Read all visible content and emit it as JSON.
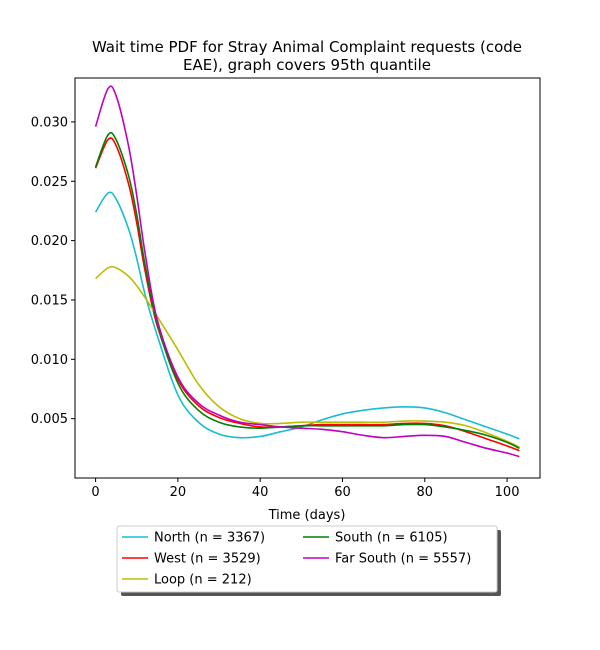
{
  "chart_data": {
    "type": "line",
    "title_line1": "Wait time PDF for Stray Animal Complaint  requests (code",
    "title_line2": "EAE), graph covers 95th quantile",
    "xlabel": "Time (days)",
    "ylabel": "",
    "xlim": [
      -5,
      108
    ],
    "ylim": [
      0.0,
      0.0337
    ],
    "xticks": [
      0,
      20,
      40,
      60,
      80,
      100
    ],
    "yticks": [
      0.005,
      0.01,
      0.015,
      0.02,
      0.025,
      0.03
    ],
    "xtick_labels": [
      "0",
      "20",
      "40",
      "60",
      "80",
      "100"
    ],
    "ytick_labels": [
      "0.005",
      "0.010",
      "0.015",
      "0.020",
      "0.025",
      "0.030"
    ],
    "grid": false,
    "legend_position": "bottom-center, below axes, two columns",
    "series": [
      {
        "name": "North (n = 3367)",
        "color": "#17becf",
        "x": [
          0,
          3,
          5,
          8,
          10,
          12,
          15,
          20,
          25,
          30,
          35,
          40,
          45,
          50,
          55,
          60,
          65,
          70,
          75,
          80,
          85,
          90,
          95,
          100,
          103
        ],
        "y": [
          0.0224,
          0.024,
          0.0235,
          0.021,
          0.0185,
          0.0155,
          0.012,
          0.007,
          0.0047,
          0.0037,
          0.0034,
          0.0035,
          0.0039,
          0.0043,
          0.0049,
          0.0054,
          0.0057,
          0.0059,
          0.006,
          0.0059,
          0.0055,
          0.0049,
          0.0043,
          0.0037,
          0.0033
        ]
      },
      {
        "name": "West (n = 3529)",
        "color": "#ff0000",
        "x": [
          0,
          3,
          5,
          8,
          10,
          12,
          15,
          20,
          25,
          30,
          35,
          40,
          45,
          50,
          55,
          60,
          65,
          70,
          75,
          80,
          85,
          90,
          95,
          100,
          103
        ],
        "y": [
          0.0261,
          0.0285,
          0.028,
          0.0248,
          0.0215,
          0.0175,
          0.0128,
          0.0083,
          0.0061,
          0.0051,
          0.0046,
          0.0043,
          0.0043,
          0.0044,
          0.0045,
          0.0045,
          0.0045,
          0.0045,
          0.0046,
          0.0046,
          0.0044,
          0.0039,
          0.0033,
          0.0027,
          0.0023
        ]
      },
      {
        "name": "Loop (n = 212)",
        "color": "#bcbd00",
        "x": [
          0,
          3,
          5,
          8,
          10,
          12,
          15,
          20,
          25,
          30,
          35,
          40,
          45,
          50,
          55,
          60,
          65,
          70,
          75,
          80,
          85,
          90,
          95,
          100,
          103
        ],
        "y": [
          0.0168,
          0.0177,
          0.0177,
          0.017,
          0.0162,
          0.0152,
          0.0136,
          0.0108,
          0.0079,
          0.006,
          0.005,
          0.0046,
          0.0046,
          0.0047,
          0.0047,
          0.0047,
          0.0047,
          0.0047,
          0.0048,
          0.0048,
          0.0047,
          0.0044,
          0.0038,
          0.0031,
          0.0026
        ]
      },
      {
        "name": "South (n = 6105)",
        "color": "#008000",
        "x": [
          0,
          3,
          5,
          8,
          10,
          12,
          15,
          20,
          25,
          30,
          35,
          40,
          45,
          50,
          55,
          60,
          65,
          70,
          75,
          80,
          85,
          90,
          95,
          100,
          103
        ],
        "y": [
          0.0262,
          0.0289,
          0.0285,
          0.0255,
          0.0222,
          0.018,
          0.013,
          0.008,
          0.0057,
          0.0047,
          0.0043,
          0.0042,
          0.0043,
          0.0044,
          0.0044,
          0.0044,
          0.0044,
          0.0044,
          0.0045,
          0.0045,
          0.0043,
          0.004,
          0.0036,
          0.003,
          0.0025
        ]
      },
      {
        "name": "Far South (n = 5557)",
        "color": "#bf00bf",
        "x": [
          0,
          3,
          5,
          8,
          10,
          12,
          15,
          20,
          25,
          30,
          35,
          40,
          45,
          50,
          55,
          60,
          65,
          70,
          75,
          80,
          85,
          90,
          95,
          100,
          103
        ],
        "y": [
          0.0296,
          0.0328,
          0.0322,
          0.028,
          0.0238,
          0.019,
          0.0133,
          0.0085,
          0.0063,
          0.0053,
          0.0047,
          0.0045,
          0.0043,
          0.0042,
          0.0041,
          0.0039,
          0.0036,
          0.0034,
          0.0035,
          0.0036,
          0.0035,
          0.003,
          0.0025,
          0.0021,
          0.0018
        ]
      }
    ]
  }
}
